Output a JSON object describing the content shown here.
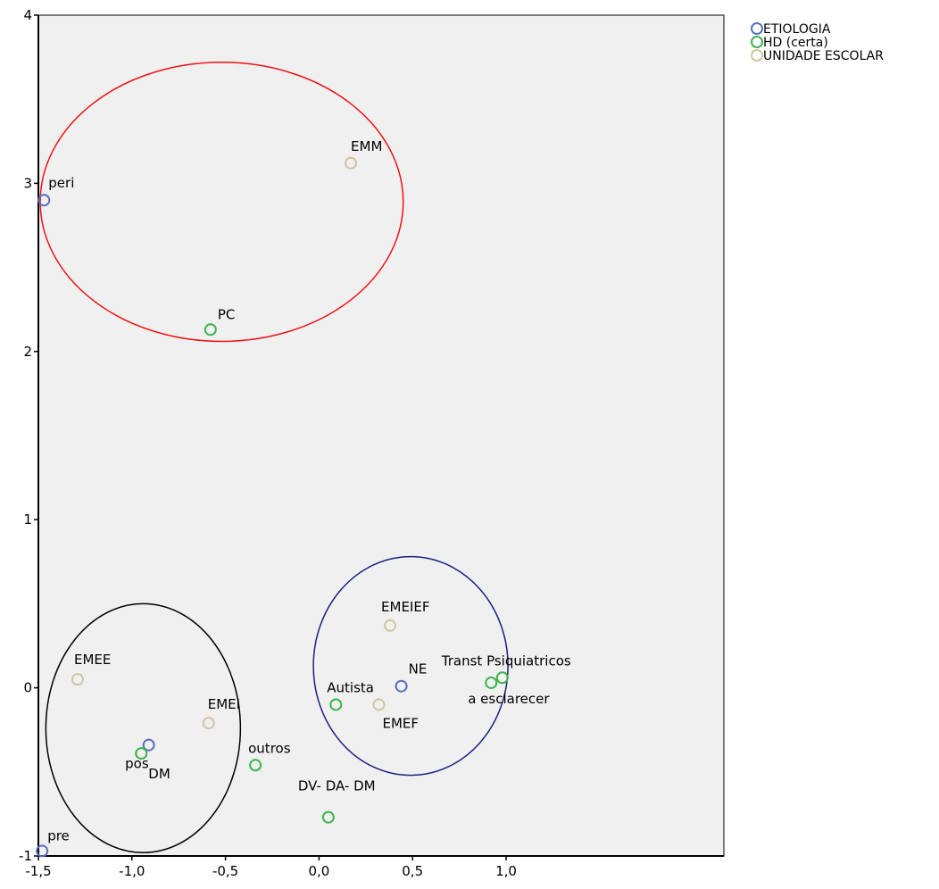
{
  "chart_data": {
    "type": "scatter",
    "title": "",
    "xlabel": "",
    "ylabel": "",
    "xlim": [
      -1.5,
      1.9
    ],
    "ylim": [
      -1,
      4
    ],
    "x_ticks": [
      -1.5,
      -1.0,
      -0.5,
      0.0,
      0.5,
      1.0
    ],
    "x_tick_labels": [
      "-1,5",
      "-1,0",
      "-0,5",
      "0,0",
      "0,5",
      "1,0"
    ],
    "y_ticks": [
      -1,
      0,
      1,
      2,
      3,
      4
    ],
    "y_tick_labels": [
      "-1",
      "0",
      "1",
      "2",
      "3",
      "4"
    ],
    "grid": false,
    "plot_background": "#f0f0f0",
    "legend_position": "top-right",
    "series": [
      {
        "name": "ETIOLOGIA",
        "color": "#5b6fc2",
        "points": [
          {
            "label": "peri",
            "x": -1.47,
            "y": 2.9
          },
          {
            "label": "pos",
            "x": -0.91,
            "y": -0.34
          },
          {
            "label": "pre",
            "x": -1.48,
            "y": -0.97
          },
          {
            "label": "NE",
            "x": 0.44,
            "y": 0.01
          }
        ]
      },
      {
        "name": "HD (certa)",
        "color": "#3cb44b",
        "points": [
          {
            "label": "PC",
            "x": -0.58,
            "y": 2.13
          },
          {
            "label": "DM",
            "x": -0.95,
            "y": -0.39
          },
          {
            "label": "outros",
            "x": -0.34,
            "y": -0.46
          },
          {
            "label": "DV- DA- DM",
            "x": 0.05,
            "y": -0.77
          },
          {
            "label": "Autista",
            "x": 0.09,
            "y": -0.1
          },
          {
            "label": "Transt Psiquiatricos",
            "x": 0.98,
            "y": 0.06
          },
          {
            "label": "a esclarecer",
            "x": 0.92,
            "y": 0.03
          }
        ]
      },
      {
        "name": "UNIDADE ESCOLAR",
        "color": "#cdc6a0",
        "points": [
          {
            "label": "EMM",
            "x": 0.17,
            "y": 3.12
          },
          {
            "label": "EMEE",
            "x": -1.29,
            "y": 0.05
          },
          {
            "label": "EMEI",
            "x": -0.59,
            "y": -0.21
          },
          {
            "label": "EMEIEF",
            "x": 0.38,
            "y": 0.37
          },
          {
            "label": "EMEF",
            "x": 0.32,
            "y": -0.1
          }
        ]
      }
    ],
    "annotations": [
      {
        "shape": "ellipse",
        "color": "#ee1111",
        "cx": -0.52,
        "cy": 2.89,
        "rx": 0.97,
        "ry": 0.83
      },
      {
        "shape": "ellipse",
        "color": "#1a237e",
        "cx": 0.49,
        "cy": 0.13,
        "rx": 0.52,
        "ry": 0.65
      },
      {
        "shape": "ellipse",
        "color": "#000000",
        "cx": -0.94,
        "cy": -0.24,
        "rx": 0.52,
        "ry": 0.74
      }
    ]
  }
}
